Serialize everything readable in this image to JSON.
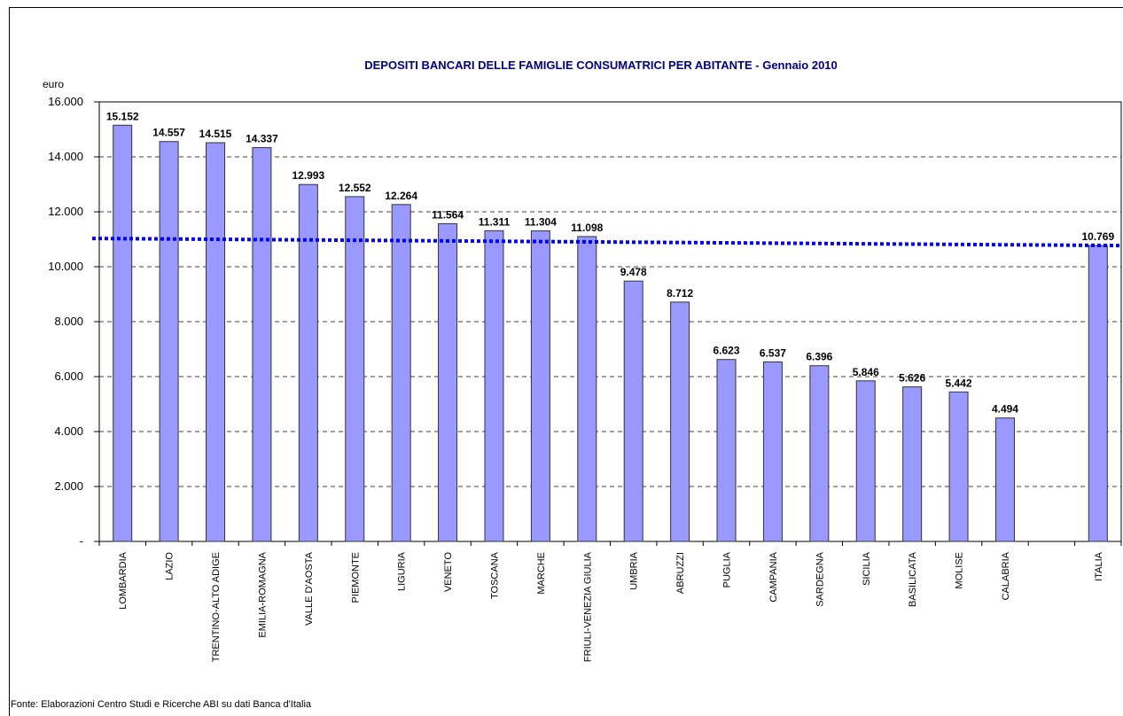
{
  "chart_data": {
    "type": "bar",
    "title": "DEPOSITI BANCARI  DELLE FAMIGLIE CONSUMATRICI PER ABITANTE - Gennaio 2010",
    "y_label": "euro",
    "source": "Fonte: Elaborazioni Centro Studi e Ricerche ABI su dati Banca d'Italia",
    "categories": [
      "LOMBARDIA",
      "LAZIO",
      "TRENTINO-ALTO ADIGE",
      "EMILIA-ROMAGNA",
      "VALLE D'AOSTA",
      "PIEMONTE",
      "LIGURIA",
      "VENETO",
      "TOSCANA",
      "MARCHE",
      "FRIULI-VENEZIA GIULIA",
      "UMBRIA",
      "ABRUZZI",
      "PUGLIA",
      "CAMPANIA",
      "SARDEGNA",
      "SICILIA",
      "BASILICATA",
      "MOLISE",
      "CALABRIA",
      null,
      "ITALIA"
    ],
    "values": [
      15152,
      14557,
      14515,
      14337,
      12993,
      12552,
      12264,
      11564,
      11311,
      11304,
      11098,
      9478,
      8712,
      6623,
      6537,
      6396,
      5846,
      5626,
      5442,
      4494,
      null,
      10769
    ],
    "value_labels": [
      "15.152",
      "14.557",
      "14.515",
      "14.337",
      "12.993",
      "12.552",
      "12.264",
      "11.564",
      "11.311",
      "11.304",
      "11.098",
      "9.478",
      "8.712",
      "6.623",
      "6.537",
      "6.396",
      "5.846",
      "5.626",
      "5.442",
      "4.494",
      null,
      "10.769"
    ],
    "color": "#9999ff",
    "ylim": [
      0,
      16000
    ],
    "yticks": [
      {
        "value": 0,
        "label": "-"
      },
      {
        "value": 2000,
        "label": "2.000"
      },
      {
        "value": 4000,
        "label": "4.000"
      },
      {
        "value": 6000,
        "label": "6.000"
      },
      {
        "value": 8000,
        "label": "8.000"
      },
      {
        "value": 10000,
        "label": "10.000"
      },
      {
        "value": 12000,
        "label": "12.000"
      },
      {
        "value": 14000,
        "label": "14.000"
      },
      {
        "value": 16000,
        "label": "16.000"
      }
    ],
    "grid": true,
    "reference_line": {
      "values": [
        11030,
        10770
      ],
      "color": "#0000ff"
    }
  }
}
